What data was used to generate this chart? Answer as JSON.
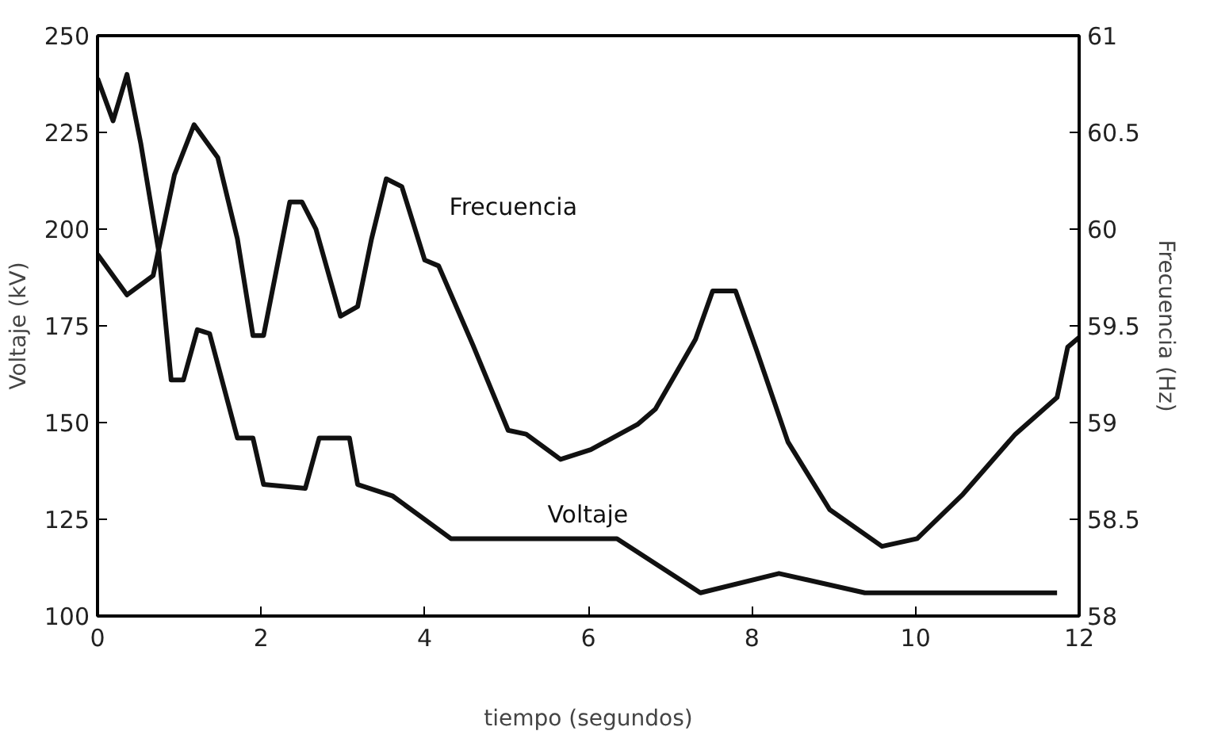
{
  "chart_data": {
    "type": "line",
    "xlabel": "tiempo (segundos)",
    "ylabel": "Voltaje (kV)",
    "y2label": "Frecuencia (Hz)",
    "xlim": [
      0,
      12
    ],
    "xticks": [
      0,
      2,
      4,
      6,
      8,
      10,
      12
    ],
    "ylim": [
      100,
      250
    ],
    "yticks": [
      100,
      125,
      150,
      175,
      200,
      225,
      250
    ],
    "y2lim": [
      58,
      61
    ],
    "y2ticks": [
      58,
      58.5,
      59,
      59.5,
      60,
      60.5,
      61
    ],
    "grid": false,
    "marker": "none",
    "line_style": "solid",
    "series": [
      {
        "name": "Voltaje",
        "color": "#111111",
        "x": [
          0,
          0.19,
          0.36,
          0.53,
          0.75,
          0.9,
          1.05,
          1.22,
          1.37,
          1.71,
          1.9,
          2.03,
          2.54,
          2.71,
          3.08,
          3.18,
          3.61,
          4.32,
          5.6,
          6.35,
          7.37,
          8.33,
          9.38,
          11.73
        ],
        "values": [
          239,
          228,
          240,
          222,
          194,
          161,
          161,
          174,
          173,
          146,
          146,
          134,
          133,
          146,
          146,
          134,
          131,
          120,
          120,
          120,
          106,
          111,
          106,
          106
        ]
      },
      {
        "name": "Frecuencia",
        "color": "#111111",
        "axis": "y2",
        "x": [
          0,
          0.36,
          0.68,
          0.94,
          1.18,
          1.47,
          1.71,
          1.9,
          2.03,
          2.35,
          2.5,
          2.67,
          2.97,
          3.18,
          3.35,
          3.53,
          3.72,
          4.0,
          4.17,
          4.59,
          5.02,
          5.24,
          5.66,
          6.03,
          6.6,
          6.82,
          7.31,
          7.52,
          7.8,
          8.06,
          8.44,
          8.95,
          9.59,
          10.02,
          10.58,
          11.22,
          11.73,
          11.86,
          12
        ],
        "values": [
          59.87,
          59.66,
          59.76,
          60.28,
          60.54,
          60.37,
          59.95,
          59.45,
          59.45,
          60.14,
          60.14,
          60.0,
          59.55,
          59.6,
          59.95,
          60.26,
          60.22,
          59.84,
          59.81,
          59.4,
          58.96,
          58.94,
          58.81,
          58.86,
          58.99,
          59.07,
          59.43,
          59.68,
          59.68,
          59.37,
          58.9,
          58.55,
          58.36,
          58.4,
          58.63,
          58.94,
          59.13,
          59.39,
          59.44
        ]
      }
    ]
  }
}
